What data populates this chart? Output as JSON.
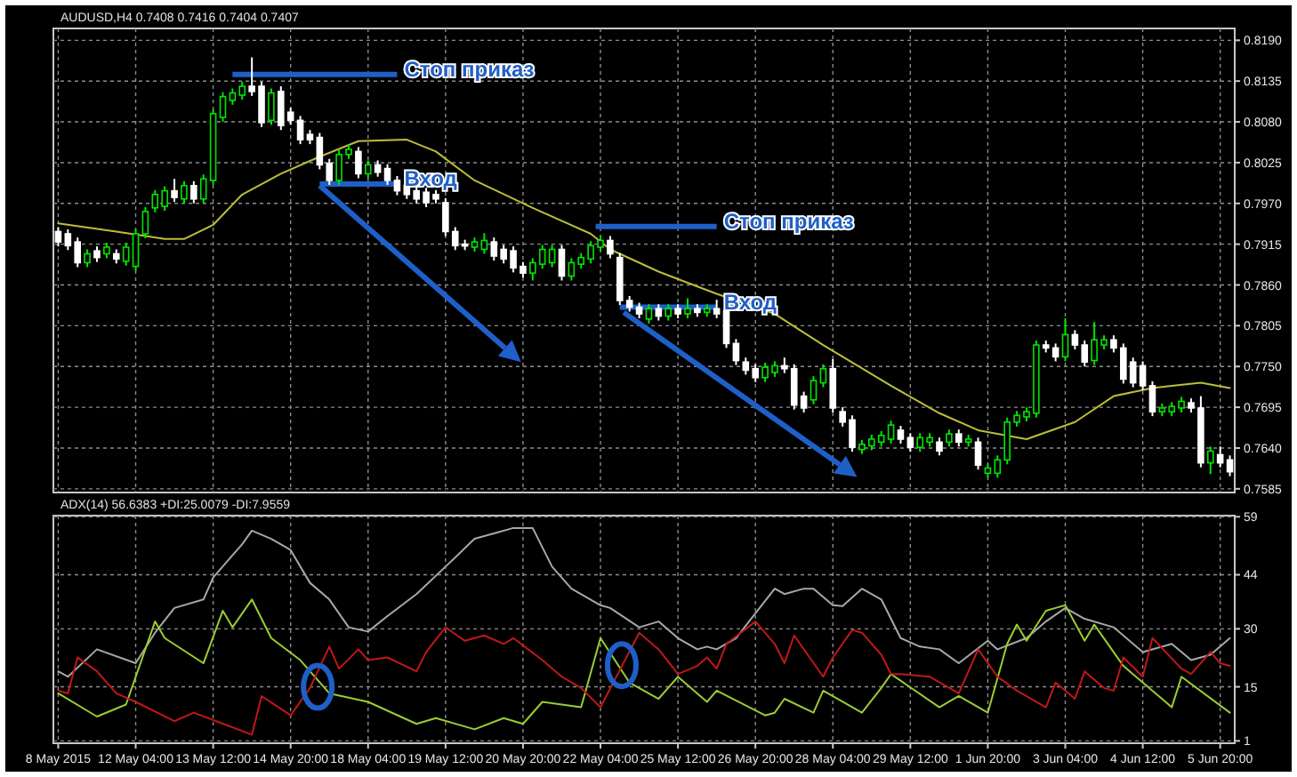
{
  "chart_data": [
    {
      "type": "candlestick",
      "title": "AUDUSD,H4 0.7408 0.7416 0.7404 0.7407",
      "colors": [
        "#ffffff",
        "#ffffff",
        "#ffffff",
        "#00e600",
        "#ffffff",
        "#00e600",
        "#ffffff",
        "#00e600",
        "#00e600",
        "#00e600",
        "#00e600",
        "#00e600",
        "#ffffff",
        "#00e600",
        "#ffffff",
        "#00e600",
        "#00e600",
        "#00e600",
        "#00e600",
        "#00e600",
        "#ffffff",
        "#ffffff",
        "#00e600",
        "#ffffff",
        "#ffffff",
        "#ffffff",
        "#ffffff",
        "#ffffff",
        "#ffffff",
        "#00e600",
        "#00e600",
        "#ffffff",
        "#00e600",
        "#ffffff",
        "#ffffff",
        "#ffffff",
        "#ffffff",
        "#ffffff",
        "#ffffff",
        "#ffffff",
        "#ffffff",
        "#ffffff",
        "#ffffff",
        "#00e600",
        "#00e600",
        "#ffffff",
        "#ffffff",
        "#ffffff",
        "#ffffff",
        "#00e600",
        "#00e600",
        "#00e600",
        "#ffffff",
        "#00e600",
        "#00e600",
        "#00e600",
        "#00e600",
        "#ffffff",
        "#ffffff",
        "#ffffff",
        "#ffffff",
        "#00e600",
        "#ffffff",
        "#00e600",
        "#ffffff",
        "#00e600",
        "#ffffff",
        "#00e600",
        "#ffffff",
        "#ffffff",
        "#ffffff",
        "#ffffff",
        "#ffffff",
        "#00e600",
        "#00e600",
        "#ffffff",
        "#ffffff",
        "#ffffff",
        "#00e600",
        "#00e600",
        "#ffffff",
        "#ffffff",
        "#ffffff",
        "#00e600",
        "#00e600",
        "#00e600",
        "#00e600",
        "#ffffff",
        "#ffffff",
        "#00e600",
        "#00e600",
        "#ffffff",
        "#00e600",
        "#ffffff",
        "#00e600",
        "#ffffff",
        "#00e600",
        "#00e600",
        "#00e600",
        "#00e600",
        "#00e600",
        "#00e600",
        "#ffffff",
        "#ffffff",
        "#00e600",
        "#ffffff",
        "#ffffff",
        "#00e600",
        "#00e600",
        "#ffffff",
        "#ffffff",
        "#ffffff",
        "#ffffff",
        "#ffffff",
        "#00e600",
        "#00e600",
        "#00e600",
        "#ffffff",
        "#ffffff",
        "#00e600",
        "#ffffff",
        "#ffffff"
      ],
      "categories": [
        null,
        null,
        null,
        null,
        null,
        null,
        null,
        null,
        null,
        null,
        null,
        null,
        null,
        null,
        null,
        null,
        null,
        null,
        null,
        null,
        null,
        null,
        null,
        null,
        null,
        null,
        null,
        null,
        null,
        null,
        null,
        null,
        null,
        null,
        null,
        null,
        null,
        null,
        null,
        null,
        null,
        null,
        null,
        null,
        null,
        null,
        null,
        null,
        null,
        null,
        null,
        null,
        null,
        null,
        null,
        null,
        null,
        null,
        null,
        null,
        null,
        null,
        null,
        null,
        null,
        null,
        null,
        null,
        null,
        null,
        null,
        null,
        null,
        null,
        null,
        null,
        null,
        null,
        null,
        null,
        null,
        null,
        null,
        null,
        null,
        null,
        null,
        null,
        null,
        null,
        null,
        null,
        null,
        null,
        null,
        null,
        null,
        null,
        null,
        null,
        null,
        null,
        null,
        null,
        null,
        null,
        null,
        null,
        null,
        null,
        null,
        null,
        null,
        null,
        null,
        null,
        null,
        null,
        null,
        null,
        null,
        null
      ],
      "ohlc": [
        [
          0.7932,
          0.7938,
          0.7912,
          0.7918
        ],
        [
          0.7929,
          0.7935,
          0.7907,
          0.7913
        ],
        [
          0.7918,
          0.7924,
          0.7884,
          0.789
        ],
        [
          0.789,
          0.7908,
          0.7884,
          0.7902
        ],
        [
          0.7906,
          0.7912,
          0.7891,
          0.7897
        ],
        [
          0.7902,
          0.7917,
          0.7896,
          0.7911
        ],
        [
          0.7902,
          0.7908,
          0.7889,
          0.7895
        ],
        [
          0.7892,
          0.7917,
          0.7886,
          0.7911
        ],
        [
          0.7885,
          0.7935,
          0.7879,
          0.7929
        ],
        [
          0.7929,
          0.7965,
          0.7923,
          0.7959
        ],
        [
          0.7964,
          0.7988,
          0.7958,
          0.7982
        ],
        [
          0.7966,
          0.7993,
          0.796,
          0.7987
        ],
        [
          0.7987,
          0.8003,
          0.7972,
          0.7978
        ],
        [
          0.7976,
          0.8,
          0.797,
          0.7994
        ],
        [
          0.7994,
          0.8,
          0.797,
          0.7976
        ],
        [
          0.7976,
          0.8009,
          0.797,
          0.8003
        ],
        [
          0.8001,
          0.8097,
          0.7995,
          0.8091
        ],
        [
          0.8086,
          0.812,
          0.808,
          0.8114
        ],
        [
          0.8109,
          0.8125,
          0.8103,
          0.8119
        ],
        [
          0.8116,
          0.8134,
          0.811,
          0.8128
        ],
        [
          0.8128,
          0.8167,
          0.8115,
          0.8121
        ],
        [
          0.8128,
          0.8134,
          0.8073,
          0.8079
        ],
        [
          0.8082,
          0.8125,
          0.8076,
          0.8119
        ],
        [
          0.8121,
          0.8128,
          0.8069,
          0.8075
        ],
        [
          0.8093,
          0.8099,
          0.8076,
          0.8082
        ],
        [
          0.8082,
          0.8088,
          0.805,
          0.8056
        ],
        [
          0.8063,
          0.8069,
          0.805,
          0.8056
        ],
        [
          0.8059,
          0.8065,
          0.8016,
          0.8022
        ],
        [
          0.8024,
          0.803,
          0.7995,
          0.8001
        ],
        [
          0.8001,
          0.8042,
          0.7995,
          0.8036
        ],
        [
          0.8036,
          0.8049,
          0.803,
          0.8043
        ],
        [
          0.804,
          0.8046,
          0.8004,
          0.801
        ],
        [
          0.801,
          0.8028,
          0.8004,
          0.8022
        ],
        [
          0.8022,
          0.8028,
          0.8006,
          0.8012
        ],
        [
          0.8017,
          0.8023,
          0.7995,
          0.8001
        ],
        [
          0.8001,
          0.8007,
          0.7981,
          0.7987
        ],
        [
          0.7994,
          0.8,
          0.7976,
          0.7982
        ],
        [
          0.7987,
          0.7993,
          0.797,
          0.7976
        ],
        [
          0.7985,
          0.7991,
          0.7965,
          0.7971
        ],
        [
          0.7982,
          0.7988,
          0.797,
          0.7976
        ],
        [
          0.7971,
          0.7977,
          0.7926,
          0.7932
        ],
        [
          0.7932,
          0.7938,
          0.7907,
          0.7913
        ],
        [
          0.7915,
          0.7921,
          0.7907,
          0.7913
        ],
        [
          0.7911,
          0.7924,
          0.7905,
          0.7918
        ],
        [
          0.7908,
          0.793,
          0.7902,
          0.792
        ],
        [
          0.7918,
          0.7924,
          0.7893,
          0.7899
        ],
        [
          0.7908,
          0.7914,
          0.7889,
          0.7895
        ],
        [
          0.7906,
          0.7912,
          0.7877,
          0.7883
        ],
        [
          0.7885,
          0.7891,
          0.787,
          0.7876
        ],
        [
          0.7876,
          0.7896,
          0.7866,
          0.789
        ],
        [
          0.7888,
          0.7914,
          0.7882,
          0.7908
        ],
        [
          0.789,
          0.7914,
          0.7884,
          0.7908
        ],
        [
          0.7908,
          0.7914,
          0.7866,
          0.7872
        ],
        [
          0.7872,
          0.7896,
          0.7866,
          0.789
        ],
        [
          0.7888,
          0.7903,
          0.7882,
          0.7897
        ],
        [
          0.7895,
          0.7919,
          0.7889,
          0.7913
        ],
        [
          0.7911,
          0.7926,
          0.7905,
          0.792
        ],
        [
          0.792,
          0.7926,
          0.7896,
          0.7902
        ],
        [
          0.7897,
          0.7903,
          0.7833,
          0.7839
        ],
        [
          0.7839,
          0.7845,
          0.7824,
          0.783
        ],
        [
          0.783,
          0.7836,
          0.7815,
          0.7821
        ],
        [
          0.7814,
          0.7834,
          0.7808,
          0.7828
        ],
        [
          0.7828,
          0.7834,
          0.7812,
          0.7818
        ],
        [
          0.7818,
          0.7834,
          0.7812,
          0.7828
        ],
        [
          0.7828,
          0.7834,
          0.7815,
          0.7821
        ],
        [
          0.7821,
          0.7842,
          0.7815,
          0.7828
        ],
        [
          0.7828,
          0.7834,
          0.7817,
          0.7823
        ],
        [
          0.7823,
          0.7834,
          0.7817,
          0.7828
        ],
        [
          0.7828,
          0.784,
          0.7815,
          0.7821
        ],
        [
          0.7825,
          0.7831,
          0.7775,
          0.7781
        ],
        [
          0.7781,
          0.7787,
          0.7752,
          0.7758
        ],
        [
          0.7756,
          0.7762,
          0.7739,
          0.7745
        ],
        [
          0.7747,
          0.7753,
          0.7729,
          0.7735
        ],
        [
          0.7735,
          0.7755,
          0.7729,
          0.7749
        ],
        [
          0.7742,
          0.7757,
          0.7736,
          0.7751
        ],
        [
          0.7751,
          0.7762,
          0.7741,
          0.7747
        ],
        [
          0.7747,
          0.7753,
          0.7692,
          0.7698
        ],
        [
          0.771,
          0.7716,
          0.7688,
          0.7694
        ],
        [
          0.7705,
          0.7737,
          0.7699,
          0.7731
        ],
        [
          0.7728,
          0.7753,
          0.7722,
          0.7747
        ],
        [
          0.7747,
          0.776,
          0.7688,
          0.7694
        ],
        [
          0.7689,
          0.7695,
          0.7669,
          0.7675
        ],
        [
          0.7678,
          0.7684,
          0.7635,
          0.7641
        ],
        [
          0.7638,
          0.7651,
          0.7632,
          0.7645
        ],
        [
          0.7643,
          0.7658,
          0.7637,
          0.7652
        ],
        [
          0.7648,
          0.7663,
          0.7642,
          0.7657
        ],
        [
          0.7652,
          0.7677,
          0.7646,
          0.7671
        ],
        [
          0.7664,
          0.767,
          0.7646,
          0.7652
        ],
        [
          0.7654,
          0.766,
          0.7635,
          0.7641
        ],
        [
          0.7641,
          0.766,
          0.7635,
          0.7654
        ],
        [
          0.7648,
          0.766,
          0.7642,
          0.7654
        ],
        [
          0.7648,
          0.7654,
          0.763,
          0.7636
        ],
        [
          0.7648,
          0.7665,
          0.7642,
          0.7659
        ],
        [
          0.7659,
          0.7665,
          0.7642,
          0.7648
        ],
        [
          0.7648,
          0.7658,
          0.7642,
          0.7652
        ],
        [
          0.7648,
          0.7654,
          0.7611,
          0.7617
        ],
        [
          0.7606,
          0.7619,
          0.76,
          0.7613
        ],
        [
          0.7606,
          0.763,
          0.76,
          0.7624
        ],
        [
          0.7624,
          0.7681,
          0.7618,
          0.7675
        ],
        [
          0.7675,
          0.769,
          0.7669,
          0.7684
        ],
        [
          0.7682,
          0.7695,
          0.7676,
          0.7689
        ],
        [
          0.7687,
          0.7785,
          0.7681,
          0.7779
        ],
        [
          0.7779,
          0.7785,
          0.7769,
          0.7775
        ],
        [
          0.7775,
          0.7781,
          0.7757,
          0.7763
        ],
        [
          0.7763,
          0.7815,
          0.7757,
          0.7793
        ],
        [
          0.7793,
          0.7799,
          0.7773,
          0.7779
        ],
        [
          0.7779,
          0.7785,
          0.775,
          0.7756
        ],
        [
          0.7758,
          0.781,
          0.7752,
          0.7786
        ],
        [
          0.7779,
          0.7792,
          0.7773,
          0.7786
        ],
        [
          0.7786,
          0.7792,
          0.7769,
          0.7775
        ],
        [
          0.7775,
          0.7781,
          0.7727,
          0.7733
        ],
        [
          0.7756,
          0.7762,
          0.7722,
          0.7728
        ],
        [
          0.7751,
          0.7757,
          0.7718,
          0.7724
        ],
        [
          0.7724,
          0.773,
          0.7683,
          0.7689
        ],
        [
          0.7689,
          0.77,
          0.7683,
          0.7694
        ],
        [
          0.7689,
          0.7702,
          0.7683,
          0.7696
        ],
        [
          0.7694,
          0.7709,
          0.7688,
          0.7703
        ],
        [
          0.7701,
          0.7707,
          0.7688,
          0.7694
        ],
        [
          0.7694,
          0.771,
          0.7614,
          0.762
        ],
        [
          0.762,
          0.7642,
          0.7605,
          0.7636
        ],
        [
          0.7631,
          0.7642,
          0.7614,
          0.762
        ],
        [
          0.7624,
          0.763,
          0.7602,
          0.7608
        ]
      ],
      "series": [
        {
          "type": "line",
          "color": "#bdbd3a",
          "values": [
            0.7943,
            null,
            null,
            null,
            null,
            null,
            0.7932,
            null,
            null,
            null,
            null,
            0.7922,
            null,
            0.7922,
            null,
            null,
            0.7941,
            null,
            null,
            0.7982,
            null,
            null,
            null,
            0.801,
            null,
            null,
            null,
            0.8033,
            null,
            null,
            null,
            0.8054,
            null,
            null,
            null,
            null,
            0.8056,
            null,
            null,
            0.804,
            null,
            null,
            null,
            0.8001,
            null,
            null,
            null,
            null,
            null,
            0.7964,
            null,
            null,
            null,
            null,
            null,
            0.7929,
            null,
            0.7908,
            null,
            null,
            null,
            null,
            0.7878,
            null,
            null,
            null,
            null,
            null,
            0.7848,
            null,
            null,
            null,
            null,
            null,
            0.7821,
            null,
            null,
            null,
            null,
            0.7779,
            null,
            null,
            null,
            null,
            null,
            null,
            0.7724,
            null,
            null,
            null,
            null,
            0.7687,
            null,
            null,
            null,
            0.7664,
            null,
            null,
            null,
            null,
            0.7652,
            null,
            null,
            null,
            null,
            0.7675,
            null,
            null,
            null,
            0.771,
            null,
            null,
            null,
            0.7721,
            null,
            0.7724,
            null,
            null,
            0.7728,
            null,
            null,
            0.7721
          ]
        }
      ],
      "ylim": [
        0.758,
        0.8206
      ],
      "yticks": [
        {
          "value": 0.819,
          "label": "0.8190"
        },
        0.8135,
        {
          "value": 0.808,
          "label": "0.8080"
        },
        0.8025,
        {
          "value": 0.797,
          "label": "0.7970"
        },
        0.7915,
        {
          "value": 0.786,
          "label": "0.7860"
        },
        0.7805,
        {
          "value": 0.775,
          "label": "0.7750"
        },
        0.7695,
        {
          "value": 0.764,
          "label": "0.7640"
        },
        0.7585
      ],
      "grid": true,
      "tick_labels": "y",
      "annotations": [
        "Стоп приказ",
        "Вход",
        "Стоп приказ",
        "Вход"
      ]
    },
    {
      "type": "line",
      "title": "ADX(14) 56.6383 +DI:25.0079 -DI:7.9559",
      "categories": [
        "8 May 2015",
        null,
        null,
        null,
        null,
        null,
        null,
        null,
        "12 May 04:00",
        null,
        null,
        null,
        null,
        null,
        null,
        null,
        "13 May 12:00",
        null,
        null,
        null,
        null,
        null,
        null,
        null,
        "14 May 20:00",
        null,
        null,
        null,
        null,
        null,
        null,
        null,
        "18 May 04:00",
        null,
        null,
        null,
        null,
        null,
        null,
        null,
        "19 May 12:00",
        null,
        null,
        null,
        null,
        null,
        null,
        null,
        "20 May 20:00",
        null,
        null,
        null,
        null,
        null,
        null,
        null,
        "22 May 04:00",
        null,
        null,
        null,
        null,
        null,
        null,
        null,
        "25 May 12:00",
        null,
        null,
        null,
        null,
        null,
        null,
        null,
        "26 May 20:00",
        null,
        null,
        null,
        null,
        null,
        null,
        null,
        "28 May 04:00",
        null,
        null,
        null,
        null,
        null,
        null,
        null,
        "29 May 12:00",
        null,
        null,
        null,
        null,
        null,
        null,
        null,
        "1 Jun 20:00",
        null,
        null,
        null,
        null,
        null,
        null,
        null,
        "3 Jun 04:00",
        null,
        null,
        null,
        null,
        null,
        null,
        null,
        "4 Jun 12:00",
        null,
        null,
        null,
        null,
        null,
        null,
        null,
        "5 Jun 20:00",
        null
      ],
      "series": [
        {
          "color": "#a8a8a8",
          "values": [
            19.0,
            17.6,
            null,
            null,
            24.7,
            null,
            null,
            null,
            21.1,
            null,
            29,
            null,
            35.4,
            null,
            null,
            37.6,
            43.3,
            null,
            null,
            51.9,
            55.4,
            null,
            53.3,
            null,
            50.4,
            null,
            41.9,
            null,
            37.6,
            null,
            30.4,
            null,
            29.3,
            null,
            33.3,
            null,
            null,
            39,
            null,
            null,
            46.1,
            null,
            null,
            53.3,
            null,
            54.7,
            null,
            56.1,
            null,
            56.1,
            null,
            46.1,
            null,
            40.4,
            null,
            null,
            36.1,
            35.4,
            null,
            null,
            30.4,
            null,
            31.9,
            null,
            27.6,
            null,
            24.7,
            25.4,
            24.7,
            null,
            27.6,
            null,
            34,
            null,
            40.4,
            39,
            null,
            40.4,
            40.4,
            null,
            36.1,
            35.9,
            null,
            40.4,
            null,
            37.6,
            null,
            27.6,
            null,
            25.4,
            null,
            24.7,
            null,
            21.1,
            null,
            null,
            26.9,
            24.7,
            null,
            null,
            27.6,
            null,
            31.9,
            null,
            35.4,
            null,
            32.6,
            null,
            null,
            30.4,
            null,
            null,
            24,
            null,
            null,
            26.1,
            null,
            21.9,
            null,
            23.3,
            null,
            27.6
          ]
        },
        {
          "color": "#9acd32",
          "values": [
            13.3,
            null,
            null,
            null,
            7.3,
            null,
            null,
            10.4,
            null,
            null,
            31.9,
            27.6,
            null,
            null,
            null,
            21.1,
            null,
            34.7,
            30.4,
            null,
            37.6,
            null,
            27.6,
            null,
            null,
            21.9,
            null,
            null,
            13.3,
            null,
            null,
            null,
            11.1,
            null,
            null,
            null,
            null,
            5.4,
            null,
            6.9,
            null,
            null,
            null,
            4,
            null,
            null,
            6.9,
            null,
            5.4,
            null,
            11.1,
            null,
            null,
            null,
            9.7,
            null,
            27.6,
            null,
            null,
            16.1,
            null,
            null,
            11.9,
            null,
            17.6,
            null,
            null,
            11.1,
            14,
            null,
            null,
            null,
            null,
            7.6,
            8.3,
            11.9,
            null,
            null,
            8.3,
            14,
            null,
            null,
            null,
            8.3,
            null,
            14.7,
            18.3,
            null,
            null,
            null,
            null,
            9.7,
            null,
            12.6,
            null,
            null,
            8.3,
            null,
            26.1,
            31.1,
            26.9,
            null,
            34.7,
            35.4,
            36.1,
            null,
            26.9,
            31.1,
            null,
            null,
            20.4,
            null,
            null,
            null,
            null,
            9.7,
            17.6,
            null,
            null,
            null,
            null,
            8.3
          ]
        },
        {
          "color": "#c01818",
          "values": [
            14,
            13.3,
            22.6,
            null,
            19,
            null,
            13.3,
            null,
            11.1,
            null,
            null,
            null,
            6.1,
            null,
            8.3,
            null,
            null,
            null,
            null,
            null,
            2.6,
            12.6,
            null,
            null,
            7.6,
            null,
            14.7,
            null,
            25.4,
            19.7,
            null,
            24.7,
            21.9,
            null,
            22.6,
            null,
            null,
            19,
            24,
            null,
            30.4,
            null,
            26.9,
            null,
            28.3,
            null,
            26.1,
            27.6,
            null,
            null,
            21.9,
            null,
            17.6,
            null,
            14.7,
            null,
            9.7,
            null,
            null,
            null,
            29,
            null,
            24.7,
            null,
            18.3,
            null,
            20.4,
            22.6,
            19.7,
            26.1,
            null,
            null,
            31.9,
            null,
            26.1,
            21.1,
            28.3,
            null,
            null,
            17.6,
            22.6,
            null,
            29.7,
            29,
            null,
            23.3,
            18.3,
            18.3,
            null,
            null,
            17.6,
            null,
            null,
            13.3,
            null,
            24.7,
            null,
            17.6,
            null,
            14,
            null,
            null,
            9.7,
            16.1,
            null,
            11.9,
            19,
            null,
            14.7,
            14,
            22.6,
            null,
            17.6,
            27.6,
            null,
            null,
            19.7,
            18.3,
            null,
            24,
            21.1,
            20.4
          ]
        }
      ],
      "ylim": [
        0.4,
        59.3
      ],
      "yticks": [
        1,
        15,
        30,
        44,
        59
      ],
      "grid": true
    }
  ]
}
